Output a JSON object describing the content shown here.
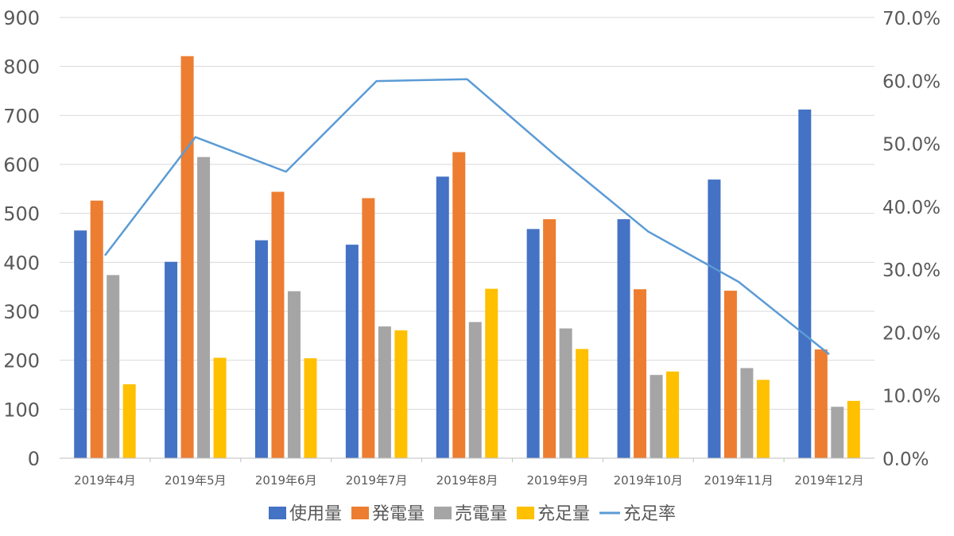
{
  "chart_data": {
    "type": "bar",
    "categories": [
      "2019年4月",
      "2019年5月",
      "2019年6月",
      "2019年7月",
      "2019年8月",
      "2019年9月",
      "2019年10月",
      "2019年11月",
      "2019年12月"
    ],
    "series": [
      {
        "name": "使用量",
        "type": "bar",
        "axis": "left",
        "color": "#4472C4",
        "values": [
          465,
          401,
          445,
          436,
          575,
          468,
          488,
          569,
          712
        ]
      },
      {
        "name": "発電量",
        "type": "bar",
        "axis": "left",
        "color": "#ED7D31",
        "values": [
          526,
          821,
          544,
          531,
          625,
          488,
          345,
          342,
          222
        ]
      },
      {
        "name": "売電量",
        "type": "bar",
        "axis": "left",
        "color": "#A5A5A5",
        "values": [
          374,
          615,
          341,
          269,
          278,
          265,
          170,
          184,
          105
        ]
      },
      {
        "name": "充足量",
        "type": "bar",
        "axis": "left",
        "color": "#FFC000",
        "values": [
          151,
          205,
          204,
          261,
          346,
          223,
          177,
          160,
          117
        ]
      },
      {
        "name": "充足率",
        "type": "line",
        "axis": "right",
        "color": "#5B9BD5",
        "values": [
          32.2,
          51.0,
          45.5,
          59.9,
          60.2,
          47.8,
          36.0,
          28.0,
          16.5
        ]
      }
    ],
    "left_axis": {
      "min": 0,
      "max": 900,
      "step": 100,
      "ticks": [
        "0",
        "100",
        "200",
        "300",
        "400",
        "500",
        "600",
        "700",
        "800",
        "900"
      ]
    },
    "right_axis": {
      "min": 0,
      "max": 70,
      "step": 10,
      "ticks": [
        "0.0%",
        "10.0%",
        "20.0%",
        "30.0%",
        "40.0%",
        "50.0%",
        "60.0%",
        "70.0%"
      ]
    },
    "grid": true,
    "legend": "bottom"
  }
}
